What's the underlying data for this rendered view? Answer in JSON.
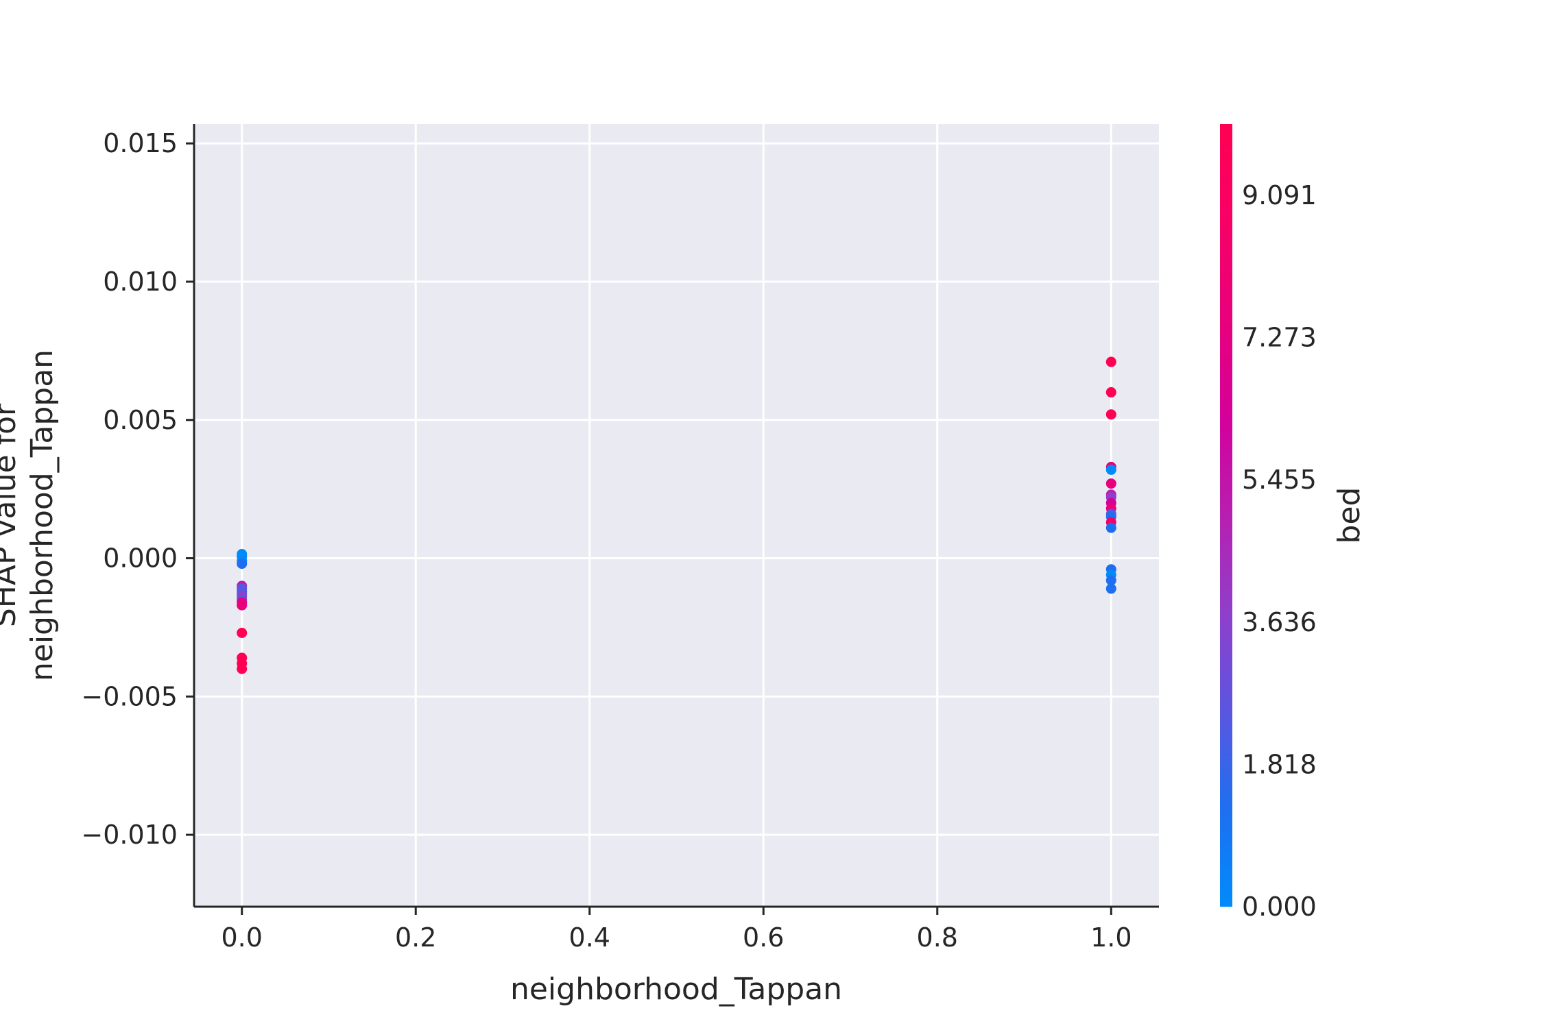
{
  "chart_data": {
    "type": "scatter",
    "title": "",
    "xlabel": "neighborhood_Tappan",
    "ylabel_lines": [
      "SHAP value for",
      "neighborhood_Tappan"
    ],
    "xlim": [
      -0.055,
      1.055
    ],
    "ylim": [
      -0.0126,
      0.0157
    ],
    "x_ticks": [
      0.0,
      0.2,
      0.4,
      0.6,
      0.8,
      1.0
    ],
    "x_tick_labels": [
      "0.0",
      "0.2",
      "0.4",
      "0.6",
      "0.8",
      "1.0"
    ],
    "y_ticks": [
      -0.01,
      -0.005,
      0.0,
      0.005,
      0.01,
      0.015
    ],
    "y_tick_labels": [
      "−0.010",
      "−0.005",
      "0.000",
      "0.005",
      "0.010",
      "0.015"
    ],
    "grid": true,
    "colorbar": {
      "label": "bed",
      "range": [
        0,
        10
      ],
      "ticks": [
        0.0,
        1.818,
        3.636,
        5.455,
        7.273,
        9.091
      ],
      "tick_labels": [
        "0.000",
        "1.818",
        "3.636",
        "5.455",
        "7.273",
        "9.091"
      ],
      "colors": [
        "#008bfb",
        "#1e6ff0",
        "#5b56e0",
        "#8f3fcb",
        "#b71fb0",
        "#d4009a",
        "#e8007c",
        "#f70066",
        "#ff0052"
      ]
    },
    "points": [
      {
        "x": 0,
        "y": 0.00015,
        "c": 0
      },
      {
        "x": 0,
        "y": 5e-05,
        "c": 0
      },
      {
        "x": 0,
        "y": -0.0001,
        "c": 0
      },
      {
        "x": 0,
        "y": -0.0002,
        "c": 1
      },
      {
        "x": 0,
        "y": -0.001,
        "c": 5
      },
      {
        "x": 0,
        "y": -0.0011,
        "c": 2
      },
      {
        "x": 0,
        "y": -0.0012,
        "c": 3
      },
      {
        "x": 0,
        "y": -0.0013,
        "c": 2
      },
      {
        "x": 0,
        "y": -0.0014,
        "c": 4
      },
      {
        "x": 0,
        "y": -0.0015,
        "c": 3
      },
      {
        "x": 0,
        "y": -0.0016,
        "c": 7
      },
      {
        "x": 0,
        "y": -0.0017,
        "c": 8
      },
      {
        "x": 0,
        "y": -0.0027,
        "c": 10
      },
      {
        "x": 0,
        "y": -0.0036,
        "c": 10
      },
      {
        "x": 0,
        "y": -0.0038,
        "c": 10
      },
      {
        "x": 0,
        "y": -0.004,
        "c": 10
      },
      {
        "x": 1,
        "y": 0.0071,
        "c": 10
      },
      {
        "x": 1,
        "y": 0.006,
        "c": 10
      },
      {
        "x": 1,
        "y": 0.0052,
        "c": 10
      },
      {
        "x": 1,
        "y": 0.0033,
        "c": 7
      },
      {
        "x": 1,
        "y": 0.0032,
        "c": 0
      },
      {
        "x": 1,
        "y": 0.0027,
        "c": 8
      },
      {
        "x": 1,
        "y": 0.0023,
        "c": 5
      },
      {
        "x": 1,
        "y": 0.0022,
        "c": 4
      },
      {
        "x": 1,
        "y": 0.002,
        "c": 6
      },
      {
        "x": 1,
        "y": 0.0018,
        "c": 8
      },
      {
        "x": 1,
        "y": 0.0016,
        "c": 3
      },
      {
        "x": 1,
        "y": 0.0015,
        "c": 1
      },
      {
        "x": 1,
        "y": 0.0013,
        "c": 9
      },
      {
        "x": 1,
        "y": 0.0011,
        "c": 1
      },
      {
        "x": 1,
        "y": -0.0004,
        "c": 1
      },
      {
        "x": 1,
        "y": -0.0006,
        "c": 0
      },
      {
        "x": 1,
        "y": -0.0008,
        "c": 1
      },
      {
        "x": 1,
        "y": -0.0011,
        "c": 1
      }
    ]
  }
}
